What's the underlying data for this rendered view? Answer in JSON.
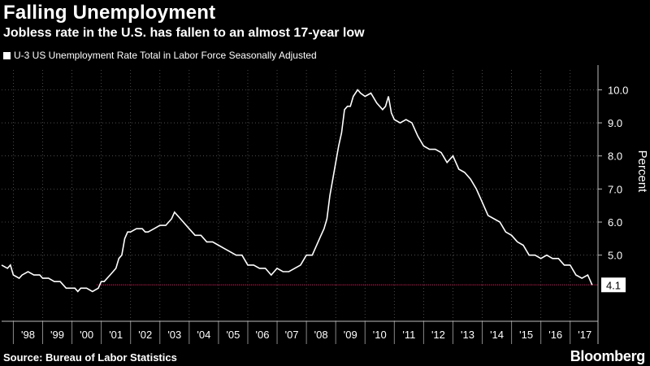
{
  "title": "Falling Unemployment",
  "subtitle": "Jobless rate in the U.S. has fallen to an almost 17-year low",
  "legend_label": "U-3 US Unemployment Rate Total in Labor Force Seasonally Adjusted",
  "source": "Source: Bureau of Labor Statistics",
  "brand": "Bloomberg",
  "chart_data": {
    "type": "line",
    "xlabel": "",
    "ylabel": "Percent",
    "xlim": [
      1997.6,
      2017.95
    ],
    "ylim": [
      3.0,
      10.6
    ],
    "y_ticks": [
      5.0,
      6.0,
      7.0,
      8.0,
      9.0,
      10.0
    ],
    "y_tick_labels": [
      "5.0",
      "6.0",
      "7.0",
      "8.0",
      "9.0",
      "10.0"
    ],
    "x_tick_labels": [
      "'98",
      "'99",
      "'00",
      "'01",
      "'02",
      "'03",
      "'04",
      "'05",
      "'06",
      "'07",
      "'08",
      "'09",
      "'10",
      "'11",
      "'12",
      "'13",
      "'14",
      "'15",
      "'16",
      "'17"
    ],
    "last_value_label": "4.1",
    "reference_line": {
      "value": 4.1,
      "color": "#e0245e"
    },
    "line_color": "#ffffff",
    "series": [
      {
        "x": [
          1997.6,
          1997.8,
          1997.9,
          1998.0,
          1998.2,
          1998.3,
          1998.5,
          1998.7,
          1998.9,
          1999.0,
          1999.2,
          1999.4,
          1999.6,
          1999.8,
          2000.0,
          2000.1,
          2000.2,
          2000.3,
          2000.5,
          2000.7,
          2000.9,
          2001.0,
          2001.1,
          2001.3,
          2001.5,
          2001.6,
          2001.7,
          2001.8,
          2001.9,
          2002.0,
          2002.2,
          2002.4,
          2002.5,
          2002.6,
          2002.8,
          2003.0,
          2003.2,
          2003.4,
          2003.5,
          2003.6,
          2003.8,
          2004.0,
          2004.2,
          2004.4,
          2004.6,
          2004.8,
          2005.0,
          2005.2,
          2005.4,
          2005.6,
          2005.8,
          2006.0,
          2006.2,
          2006.4,
          2006.6,
          2006.8,
          2007.0,
          2007.2,
          2007.4,
          2007.6,
          2007.8,
          2008.0,
          2008.2,
          2008.4,
          2008.5,
          2008.6,
          2008.7,
          2008.8,
          2008.9,
          2009.0,
          2009.1,
          2009.2,
          2009.3,
          2009.4,
          2009.5,
          2009.6,
          2009.75,
          2009.85,
          2010.0,
          2010.2,
          2010.4,
          2010.5,
          2010.6,
          2010.7,
          2010.8,
          2010.9,
          2011.0,
          2011.2,
          2011.4,
          2011.6,
          2011.8,
          2012.0,
          2012.2,
          2012.4,
          2012.6,
          2012.8,
          2013.0,
          2013.2,
          2013.4,
          2013.6,
          2013.8,
          2014.0,
          2014.2,
          2014.4,
          2014.6,
          2014.8,
          2015.0,
          2015.2,
          2015.4,
          2015.6,
          2015.8,
          2016.0,
          2016.2,
          2016.4,
          2016.6,
          2016.8,
          2017.0,
          2017.2,
          2017.4,
          2017.6,
          2017.75
        ],
        "values": [
          4.7,
          4.6,
          4.7,
          4.4,
          4.3,
          4.4,
          4.5,
          4.4,
          4.4,
          4.3,
          4.3,
          4.2,
          4.2,
          4.0,
          4.0,
          4.0,
          3.9,
          4.0,
          4.0,
          3.9,
          4.0,
          4.2,
          4.2,
          4.4,
          4.6,
          4.9,
          5.0,
          5.5,
          5.7,
          5.7,
          5.8,
          5.8,
          5.7,
          5.7,
          5.8,
          5.9,
          5.9,
          6.1,
          6.3,
          6.2,
          6.0,
          5.8,
          5.6,
          5.6,
          5.4,
          5.4,
          5.3,
          5.2,
          5.1,
          5.0,
          5.0,
          4.7,
          4.7,
          4.6,
          4.6,
          4.4,
          4.6,
          4.5,
          4.5,
          4.6,
          4.7,
          5.0,
          5.0,
          5.4,
          5.6,
          5.8,
          6.1,
          6.8,
          7.3,
          7.8,
          8.3,
          8.7,
          9.4,
          9.5,
          9.5,
          9.8,
          10.0,
          9.9,
          9.8,
          9.9,
          9.6,
          9.5,
          9.4,
          9.5,
          9.8,
          9.3,
          9.1,
          9.0,
          9.1,
          9.0,
          8.6,
          8.3,
          8.2,
          8.2,
          8.1,
          7.8,
          8.0,
          7.6,
          7.5,
          7.3,
          7.0,
          6.6,
          6.2,
          6.1,
          6.0,
          5.7,
          5.6,
          5.4,
          5.3,
          5.0,
          5.0,
          4.9,
          5.0,
          4.9,
          4.9,
          4.7,
          4.7,
          4.4,
          4.3,
          4.4,
          4.1
        ]
      }
    ]
  }
}
